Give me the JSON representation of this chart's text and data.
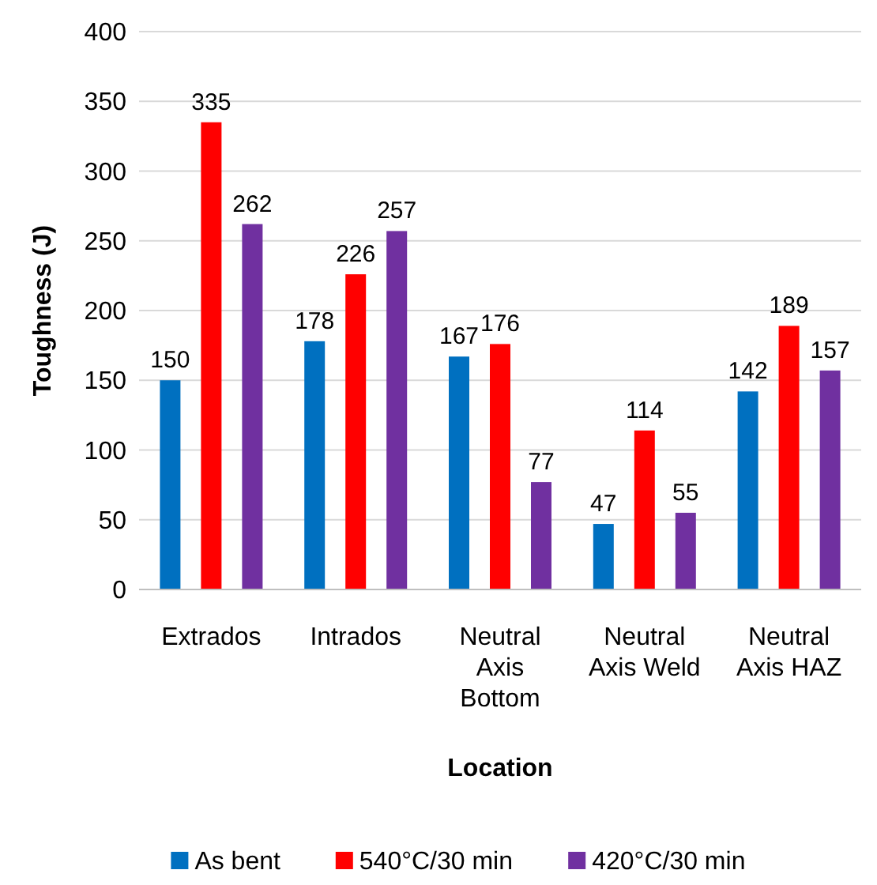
{
  "chart_data": {
    "type": "bar",
    "xlabel": "Location",
    "ylabel": "Toughness (J)",
    "categories": [
      "Extrados",
      "Intrados",
      "Neutral Axis Bottom",
      "Neutral Axis Weld",
      "Neutral Axis HAZ"
    ],
    "series": [
      {
        "name": "As bent",
        "color": "#0070c0",
        "values": [
          150,
          178,
          167,
          47,
          142
        ]
      },
      {
        "name": "540°C/30 min",
        "color": "#ff0000",
        "values": [
          335,
          226,
          176,
          114,
          189
        ]
      },
      {
        "name": "420°C/30 min",
        "color": "#7030a0",
        "values": [
          262,
          257,
          77,
          55,
          157
        ]
      }
    ],
    "ylim": [
      0,
      400
    ],
    "yticks": [
      0,
      50,
      100,
      150,
      200,
      250,
      300,
      350,
      400
    ],
    "grid": "y",
    "legend": "bottom",
    "data_labels": true
  }
}
